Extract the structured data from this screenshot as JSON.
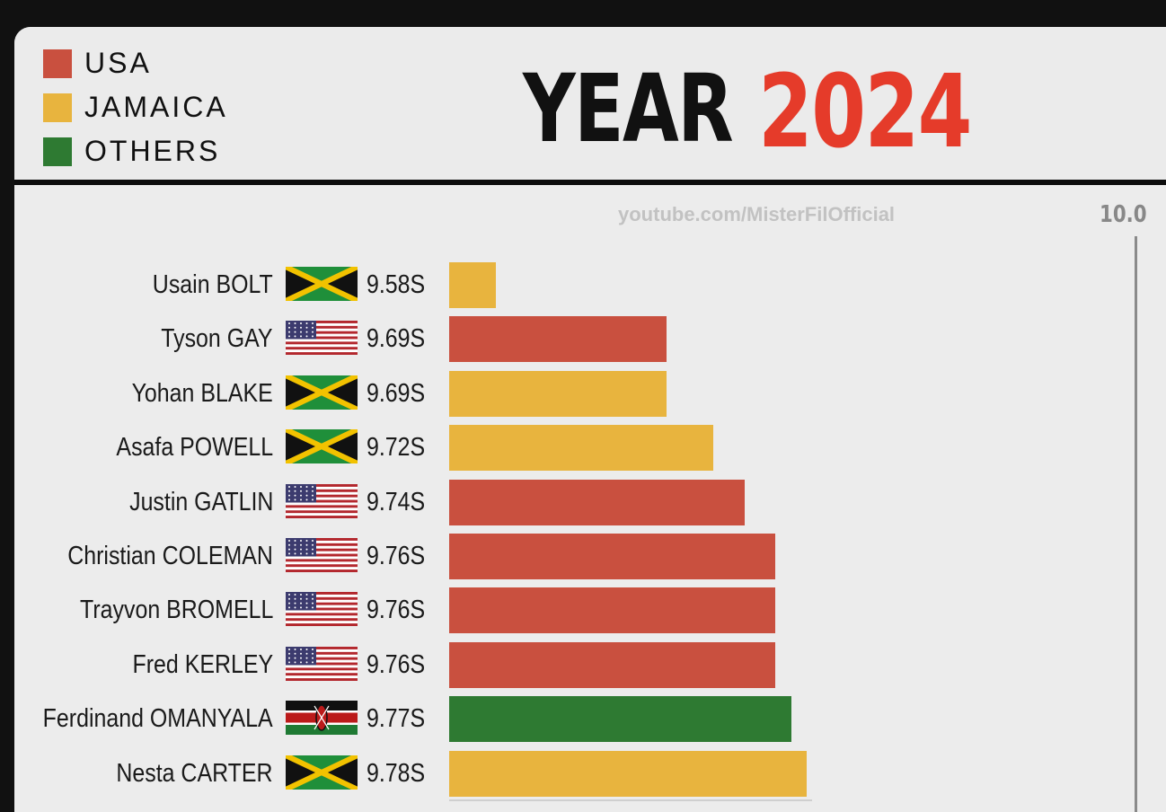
{
  "legend": [
    {
      "label": "USA",
      "color": "#c9503f"
    },
    {
      "label": "JAMAICA",
      "color": "#e8b43e"
    },
    {
      "label": "OTHERS",
      "color": "#2e7a32"
    }
  ],
  "title": {
    "word": "YEAR",
    "year": "2024"
  },
  "watermark": "youtube.com/MisterFilOfficial",
  "chart_data": {
    "type": "bar",
    "orientation": "horizontal",
    "axis_reference_label": "10.0",
    "categories": [
      "Usain BOLT",
      "Tyson GAY",
      "Yohan BLAKE",
      "Asafa POWELL",
      "Justin GATLIN",
      "Christian COLEMAN",
      "Trayvon BROMELL",
      "Fred KERLEY",
      "Ferdinand OMANYALA",
      "Nesta CARTER"
    ],
    "values": [
      9.58,
      9.69,
      9.69,
      9.72,
      9.74,
      9.76,
      9.76,
      9.76,
      9.77,
      9.78
    ],
    "value_labels": [
      "9.58S",
      "9.69S",
      "9.69S",
      "9.72S",
      "9.74S",
      "9.76S",
      "9.76S",
      "9.76S",
      "9.77S",
      "9.78S"
    ],
    "countries": [
      "jamaica",
      "usa",
      "jamaica",
      "jamaica",
      "usa",
      "usa",
      "usa",
      "usa",
      "kenya",
      "jamaica"
    ],
    "groups": [
      "JAMAICA",
      "USA",
      "JAMAICA",
      "JAMAICA",
      "USA",
      "USA",
      "USA",
      "USA",
      "OTHERS",
      "JAMAICA"
    ],
    "bar_colors": {
      "USA": "#c9503f",
      "JAMAICA": "#e8b43e",
      "OTHERS": "#2e7a32"
    },
    "xlim": [
      9.55,
      10.0
    ],
    "legend_position": "top-left",
    "grid": false
  }
}
